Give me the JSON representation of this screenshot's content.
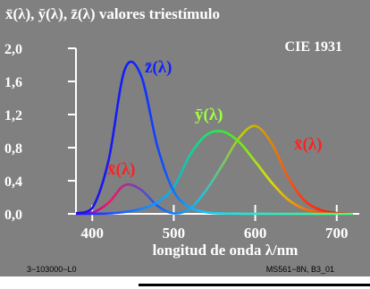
{
  "colors": {
    "frame_background": "#808080",
    "axis_and_text": "#ffffff",
    "x_bar_label": "#ff2020",
    "y_bar_label": "#a0ff40",
    "z_bar_label": "#1020ff"
  },
  "chart_data": {
    "type": "line",
    "title": "x̄(λ), ȳ(λ), z̄(λ) valores triestímulo",
    "standard_label": "CIE 1931",
    "xlabel": "longitud de onda λ/nm",
    "ylabel": "",
    "xlim": [
      380,
      720
    ],
    "ylim": [
      0,
      2.0
    ],
    "x_ticks": [
      "400",
      "500",
      "600",
      "700"
    ],
    "x_tick_values": [
      400,
      500,
      600,
      700
    ],
    "y_ticks": [
      "0,0",
      "0,4",
      "0,8",
      "1,2",
      "1,6",
      "2,0"
    ],
    "y_tick_values": [
      0,
      0.4,
      0.8,
      1.2,
      1.6,
      2.0
    ],
    "grid": false,
    "x": [
      380,
      400,
      420,
      440,
      460,
      480,
      500,
      520,
      540,
      560,
      580,
      600,
      620,
      640,
      660,
      680,
      700,
      720
    ],
    "series": [
      {
        "name": "x̄(λ)",
        "label_text": "x̄(λ)",
        "values": [
          0.001,
          0.014,
          0.134,
          0.348,
          0.29,
          0.096,
          0.005,
          0.063,
          0.29,
          0.595,
          0.916,
          1.062,
          0.854,
          0.448,
          0.165,
          0.047,
          0.011,
          0.002
        ]
      },
      {
        "name": "ȳ(λ)",
        "label_text": "ȳ(λ)",
        "values": [
          0.0,
          0.0,
          0.004,
          0.023,
          0.06,
          0.139,
          0.323,
          0.71,
          0.954,
          0.995,
          0.87,
          0.631,
          0.381,
          0.175,
          0.061,
          0.017,
          0.004,
          0.001
        ]
      },
      {
        "name": "z̄(λ)",
        "label_text": "z̄(λ)",
        "values": [
          0.007,
          0.068,
          0.646,
          1.747,
          1.669,
          0.813,
          0.272,
          0.078,
          0.02,
          0.004,
          0.002,
          0.001,
          0.0,
          0.0,
          0.0,
          0.0,
          0.0,
          0.0
        ]
      }
    ],
    "x_label_second": "x̄(λ)"
  },
  "footer": {
    "left": "3−103000−L0",
    "right": "MS561−8N, B3_01"
  }
}
